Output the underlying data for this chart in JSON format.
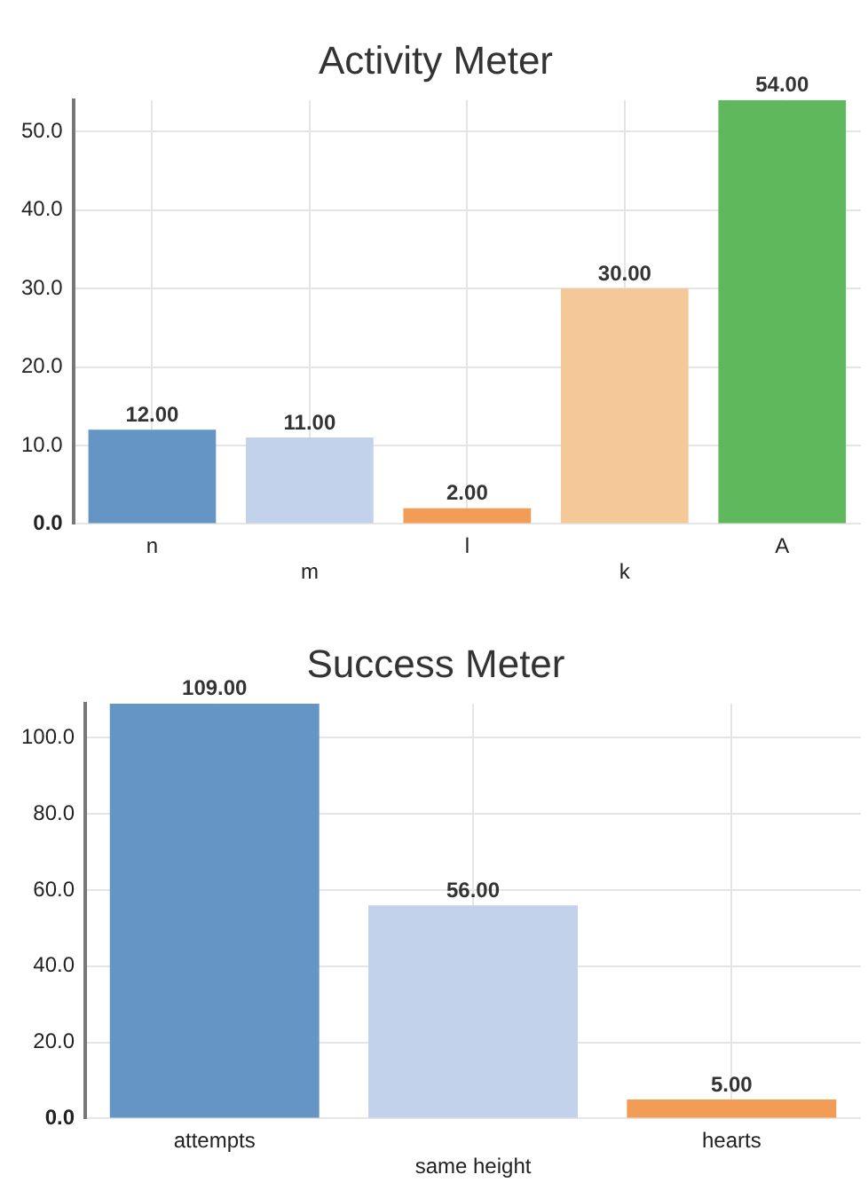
{
  "chart_data": [
    {
      "type": "bar",
      "title": "Activity Meter",
      "categories": [
        "n",
        "m",
        "l",
        "k",
        "A"
      ],
      "values": [
        12,
        11,
        2,
        30,
        54
      ],
      "colors": [
        "#6495c4",
        "#c3d2eb",
        "#f39c55",
        "#f5c997",
        "#5fb85c"
      ],
      "value_labels": [
        "12.00",
        "11.00",
        "2.00",
        "30.00",
        "54.00"
      ],
      "ylim": [
        0,
        54
      ],
      "yticks": [
        {
          "value": 0,
          "label": "0.0"
        },
        {
          "value": 10,
          "label": "10.0"
        },
        {
          "value": 20,
          "label": "20.0"
        },
        {
          "value": 30,
          "label": "30.0"
        },
        {
          "value": 40,
          "label": "40.0"
        },
        {
          "value": 50,
          "label": "50.0"
        }
      ],
      "grid": true,
      "legend": false
    },
    {
      "type": "bar",
      "title": "Success Meter",
      "categories": [
        "attempts",
        "same height",
        "hearts"
      ],
      "values": [
        109,
        56,
        5
      ],
      "colors": [
        "#6495c4",
        "#c3d2eb",
        "#f39c55"
      ],
      "value_labels": [
        "109.00",
        "56.00",
        "5.00"
      ],
      "ylim": [
        0,
        109
      ],
      "yticks": [
        {
          "value": 0,
          "label": "0.0"
        },
        {
          "value": 20,
          "label": "20.0"
        },
        {
          "value": 40,
          "label": "40.0"
        },
        {
          "value": 60,
          "label": "60.0"
        },
        {
          "value": 80,
          "label": "80.0"
        },
        {
          "value": 100,
          "label": "100.0"
        }
      ],
      "grid": true,
      "legend": false
    }
  ]
}
